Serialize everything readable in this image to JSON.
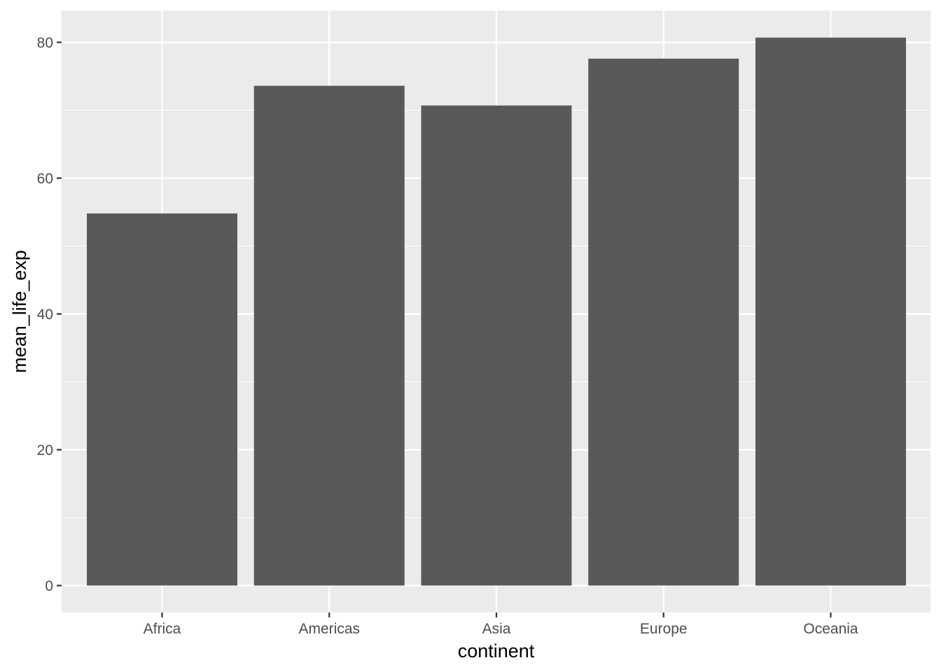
{
  "chart_data": {
    "type": "bar",
    "categories": [
      "Africa",
      "Americas",
      "Asia",
      "Europe",
      "Oceania"
    ],
    "values": [
      54.8,
      73.6,
      70.7,
      77.6,
      80.7
    ],
    "xlabel": "continent",
    "ylabel": "mean_life_exp",
    "ylim": [
      0,
      85
    ],
    "yticks": [
      0,
      20,
      40,
      60,
      80
    ],
    "grid": true,
    "legend": "none"
  },
  "colors": {
    "panel_background": "#EBEBEB",
    "grid_line": "#FFFFFF",
    "bar_fill": "#595959",
    "tick_color": "#333333",
    "tick_label_color": "#4D4D4D",
    "axis_title_color": "#000000"
  }
}
